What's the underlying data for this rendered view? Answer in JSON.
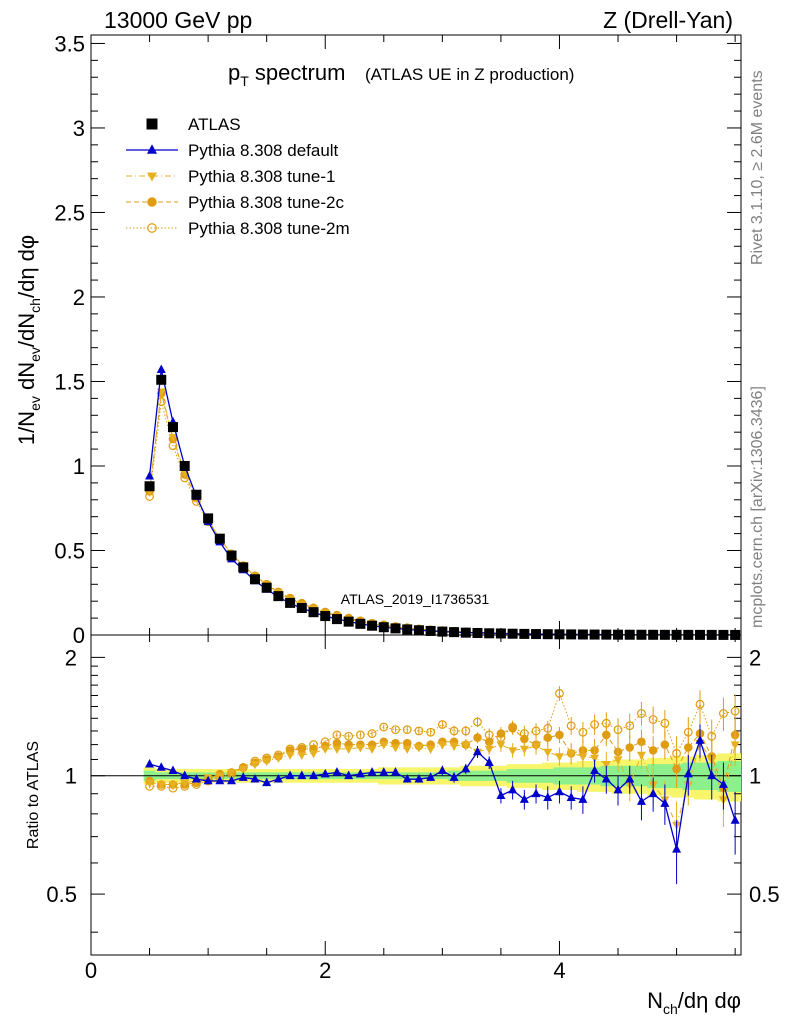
{
  "header": {
    "left": "13000 GeV pp",
    "right": "Z (Drell-Yan)"
  },
  "side_labels": {
    "rivet": "Rivet 3.1.10, ≥ 2.6M events",
    "mcplots": "mcplots.cern.ch [arXiv:1306.3436]"
  },
  "chart_data": [
    {
      "type": "scatter",
      "title_main": "p",
      "title_sub": "T",
      "title_rest": " spectrum",
      "title_small": "(ATLAS UE in Z production)",
      "watermark": "ATLAS_2019_I1736531",
      "ylabel": "1/N_ev dN_ev/dN_ch/dη dφ",
      "xlim": [
        0,
        5.55
      ],
      "ylim": [
        0,
        3.55
      ],
      "yticks": [
        "0",
        "0.5",
        "1",
        "1.5",
        "2",
        "2.5",
        "3",
        "3.5"
      ],
      "ytick_values": [
        0,
        0.5,
        1,
        1.5,
        2,
        2.5,
        3,
        3.5
      ],
      "x": [
        0.5,
        0.6,
        0.7,
        0.8,
        0.9,
        1.0,
        1.1,
        1.2,
        1.3,
        1.4,
        1.5,
        1.6,
        1.7,
        1.8,
        1.9,
        2.0,
        2.1,
        2.2,
        2.3,
        2.4,
        2.5,
        2.6,
        2.7,
        2.8,
        2.9,
        3.0,
        3.1,
        3.2,
        3.3,
        3.4,
        3.5,
        3.6,
        3.7,
        3.8,
        3.9,
        4.0,
        4.1,
        4.2,
        4.3,
        4.4,
        4.5,
        4.6,
        4.7,
        4.8,
        4.9,
        5.0,
        5.1,
        5.2,
        5.3,
        5.4,
        5.5
      ],
      "series": [
        {
          "name": "ATLAS",
          "color": "#000000",
          "marker": "square",
          "values": [
            0.88,
            1.51,
            1.23,
            1.0,
            0.83,
            0.69,
            0.57,
            0.47,
            0.4,
            0.33,
            0.28,
            0.23,
            0.19,
            0.16,
            0.135,
            0.112,
            0.094,
            0.079,
            0.066,
            0.055,
            0.046,
            0.039,
            0.033,
            0.028,
            0.024,
            0.02,
            0.017,
            0.014,
            0.012,
            0.01,
            0.009,
            0.0075,
            0.0065,
            0.0055,
            0.0048,
            0.0041,
            0.0035,
            0.003,
            0.0026,
            0.0022,
            0.0019,
            0.0016,
            0.0014,
            0.0012,
            0.001,
            0.0009,
            0.0008,
            0.0007,
            0.0006,
            0.0005,
            0.0004
          ]
        },
        {
          "name": "Pythia 8.308 default",
          "color": "#0000cc",
          "marker": "triangle-up",
          "values": [
            0.94,
            1.57,
            1.26,
            1.0,
            0.82,
            0.67,
            0.55,
            0.45,
            0.385,
            0.32,
            0.27,
            0.225,
            0.187,
            0.158,
            0.134,
            0.112,
            0.095,
            0.08,
            0.066,
            0.055,
            0.046,
            0.039,
            0.033,
            0.028,
            0.024,
            0.02,
            0.017,
            0.015,
            0.013,
            0.011,
            0.009,
            0.0075,
            0.0065,
            0.0055,
            0.0048,
            0.0041,
            0.0035,
            0.003,
            0.0026,
            0.0022,
            0.0019,
            0.0016,
            0.0014,
            0.0012,
            0.001,
            0.0009,
            0.0008,
            0.0007,
            0.0006,
            0.0005,
            0.0004
          ]
        },
        {
          "name": "Pythia 8.308 tune-1",
          "color": "#e6b020",
          "marker": "triangle-down",
          "values": [
            0.85,
            1.44,
            1.17,
            0.96,
            0.81,
            0.68,
            0.57,
            0.48,
            0.41,
            0.35,
            0.3,
            0.25,
            0.21,
            0.18,
            0.155,
            0.13,
            0.11,
            0.093,
            0.078,
            0.065,
            0.055,
            0.046,
            0.039,
            0.033,
            0.028,
            0.024,
            0.02,
            0.017,
            0.014,
            0.012,
            0.01,
            0.0087,
            0.0075,
            0.0064,
            0.0055,
            0.0047,
            0.004,
            0.0034,
            0.0029,
            0.0025,
            0.0021,
            0.0018,
            0.0016,
            0.0014,
            0.0012,
            0.001,
            0.0009,
            0.0008,
            0.0007,
            0.0006,
            0.0005
          ]
        },
        {
          "name": "Pythia 8.308 tune-2c",
          "color": "#e09c10",
          "marker": "circle",
          "values": [
            0.85,
            1.43,
            1.16,
            0.95,
            0.81,
            0.68,
            0.57,
            0.48,
            0.41,
            0.35,
            0.3,
            0.25,
            0.215,
            0.185,
            0.158,
            0.133,
            0.113,
            0.095,
            0.08,
            0.067,
            0.056,
            0.047,
            0.04,
            0.034,
            0.029,
            0.025,
            0.021,
            0.017,
            0.015,
            0.012,
            0.011,
            0.009,
            0.0077,
            0.0066,
            0.0056,
            0.0048,
            0.0041,
            0.0035,
            0.003,
            0.0025,
            0.0022,
            0.0019,
            0.0016,
            0.0014,
            0.0012,
            0.001,
            0.0009,
            0.0008,
            0.0007,
            0.0006,
            0.0005
          ]
        },
        {
          "name": "Pythia 8.308 tune-2m",
          "color": "#e09c10",
          "marker": "open-circle",
          "values": [
            0.82,
            1.38,
            1.12,
            0.93,
            0.79,
            0.67,
            0.57,
            0.48,
            0.41,
            0.35,
            0.3,
            0.255,
            0.218,
            0.188,
            0.16,
            0.136,
            0.117,
            0.1,
            0.084,
            0.07,
            0.06,
            0.05,
            0.043,
            0.036,
            0.031,
            0.026,
            0.022,
            0.018,
            0.016,
            0.013,
            0.011,
            0.0095,
            0.008,
            0.0068,
            0.0058,
            0.005,
            0.0043,
            0.0036,
            0.0031,
            0.0026,
            0.0023,
            0.002,
            0.0017,
            0.0015,
            0.0013,
            0.0011,
            0.001,
            0.0009,
            0.0008,
            0.0007,
            0.0006
          ]
        }
      ]
    },
    {
      "type": "scatter",
      "ylabel": "Ratio to ATLAS",
      "xlabel": "N_ch/dη dφ",
      "xlim": [
        0,
        5.55
      ],
      "ylim": [
        0.35,
        2.28
      ],
      "xticks": [
        "0",
        "2",
        "4"
      ],
      "xtick_values": [
        0,
        2,
        4
      ],
      "yticks": [
        "0.5",
        "1",
        "2"
      ],
      "ytick_values": [
        0.5,
        1,
        2
      ],
      "x": [
        0.5,
        0.6,
        0.7,
        0.8,
        0.9,
        1.0,
        1.1,
        1.2,
        1.3,
        1.4,
        1.5,
        1.6,
        1.7,
        1.8,
        1.9,
        2.0,
        2.1,
        2.2,
        2.3,
        2.4,
        2.5,
        2.6,
        2.7,
        2.8,
        2.9,
        3.0,
        3.1,
        3.2,
        3.3,
        3.4,
        3.5,
        3.6,
        3.7,
        3.8,
        3.9,
        4.0,
        4.1,
        4.2,
        4.3,
        4.4,
        4.5,
        4.6,
        4.7,
        4.8,
        4.9,
        5.0,
        5.1,
        5.2,
        5.3,
        5.4,
        5.5
      ],
      "band_stat": [
        0.03,
        0.02,
        0.02,
        0.02,
        0.02,
        0.02,
        0.02,
        0.02,
        0.02,
        0.02,
        0.02,
        0.02,
        0.02,
        0.02,
        0.02,
        0.02,
        0.02,
        0.02,
        0.02,
        0.02,
        0.02,
        0.02,
        0.02,
        0.02,
        0.02,
        0.02,
        0.03,
        0.03,
        0.03,
        0.03,
        0.03,
        0.04,
        0.04,
        0.04,
        0.04,
        0.05,
        0.05,
        0.05,
        0.05,
        0.06,
        0.06,
        0.06,
        0.06,
        0.07,
        0.07,
        0.07,
        0.08,
        0.08,
        0.08,
        0.09,
        0.09
      ],
      "band_total": [
        0.05,
        0.04,
        0.04,
        0.04,
        0.04,
        0.04,
        0.04,
        0.04,
        0.04,
        0.04,
        0.04,
        0.04,
        0.04,
        0.04,
        0.04,
        0.04,
        0.04,
        0.04,
        0.04,
        0.04,
        0.05,
        0.05,
        0.05,
        0.05,
        0.05,
        0.05,
        0.05,
        0.06,
        0.06,
        0.06,
        0.06,
        0.07,
        0.07,
        0.07,
        0.08,
        0.08,
        0.08,
        0.09,
        0.09,
        0.09,
        0.1,
        0.1,
        0.1,
        0.11,
        0.11,
        0.12,
        0.12,
        0.13,
        0.13,
        0.14,
        0.14
      ],
      "series": [
        {
          "name": "Pythia 8.308 default",
          "color": "#0000cc",
          "marker": "triangle-up",
          "values": [
            1.07,
            1.05,
            1.03,
            1.0,
            0.98,
            0.97,
            0.97,
            0.97,
            0.99,
            0.98,
            0.96,
            0.98,
            1.0,
            1.0,
            1.0,
            1.01,
            1.02,
            1.0,
            1.01,
            1.02,
            1.02,
            1.02,
            0.98,
            0.98,
            0.99,
            1.03,
            0.99,
            1.04,
            1.15,
            1.08,
            0.89,
            0.92,
            0.87,
            0.9,
            0.88,
            0.91,
            0.88,
            0.87,
            1.03,
            0.98,
            0.92,
            0.98,
            0.86,
            0.9,
            0.85,
            0.65,
            1.01,
            1.23,
            1.0,
            0.95,
            0.77
          ],
          "errors": [
            0.01,
            0.01,
            0.01,
            0.01,
            0.01,
            0.01,
            0.01,
            0.01,
            0.01,
            0.01,
            0.01,
            0.01,
            0.01,
            0.01,
            0.01,
            0.01,
            0.01,
            0.01,
            0.01,
            0.01,
            0.02,
            0.02,
            0.02,
            0.02,
            0.02,
            0.03,
            0.03,
            0.03,
            0.04,
            0.04,
            0.04,
            0.05,
            0.05,
            0.05,
            0.06,
            0.06,
            0.06,
            0.07,
            0.07,
            0.08,
            0.08,
            0.08,
            0.09,
            0.09,
            0.1,
            0.12,
            0.12,
            0.12,
            0.13,
            0.13,
            0.14
          ]
        },
        {
          "name": "Pythia 8.308 tune-1",
          "color": "#e6b020",
          "marker": "triangle-down",
          "values": [
            0.96,
            0.95,
            0.95,
            0.96,
            0.97,
            0.99,
            1.0,
            1.02,
            1.04,
            1.07,
            1.09,
            1.11,
            1.13,
            1.13,
            1.14,
            1.17,
            1.17,
            1.17,
            1.18,
            1.17,
            1.2,
            1.18,
            1.17,
            1.18,
            1.17,
            1.2,
            1.19,
            1.2,
            1.15,
            1.17,
            1.2,
            1.16,
            1.17,
            1.19,
            1.15,
            1.12,
            1.14,
            1.12,
            1.11,
            1.07,
            1.1,
            0.95,
            1.13,
            0.95,
            0.87,
            0.75,
            0.95,
            1.21,
            1.1,
            0.87,
            1.2
          ],
          "errors": [
            0.01,
            0.01,
            0.01,
            0.01,
            0.01,
            0.01,
            0.01,
            0.01,
            0.01,
            0.01,
            0.01,
            0.01,
            0.01,
            0.01,
            0.01,
            0.01,
            0.02,
            0.02,
            0.02,
            0.02,
            0.02,
            0.02,
            0.02,
            0.03,
            0.03,
            0.03,
            0.03,
            0.04,
            0.04,
            0.04,
            0.05,
            0.05,
            0.05,
            0.06,
            0.06,
            0.06,
            0.07,
            0.07,
            0.08,
            0.08,
            0.08,
            0.09,
            0.09,
            0.1,
            0.1,
            0.11,
            0.11,
            0.12,
            0.12,
            0.13,
            0.14
          ]
        },
        {
          "name": "Pythia 8.308 tune-2c",
          "color": "#e09c10",
          "marker": "circle",
          "values": [
            0.97,
            0.95,
            0.95,
            0.95,
            0.96,
            0.98,
            1.01,
            1.02,
            1.05,
            1.08,
            1.1,
            1.12,
            1.16,
            1.17,
            1.17,
            1.19,
            1.21,
            1.2,
            1.2,
            1.2,
            1.22,
            1.21,
            1.21,
            1.19,
            1.2,
            1.22,
            1.22,
            1.2,
            1.25,
            1.22,
            1.28,
            1.32,
            1.24,
            1.2,
            1.25,
            1.27,
            1.14,
            1.16,
            1.16,
            1.27,
            1.15,
            1.18,
            1.22,
            1.16,
            1.2,
            1.04,
            1.18,
            1.28,
            1.12,
            0.93,
            1.27
          ],
          "errors": [
            0.01,
            0.01,
            0.01,
            0.01,
            0.01,
            0.01,
            0.01,
            0.01,
            0.01,
            0.01,
            0.01,
            0.01,
            0.01,
            0.01,
            0.01,
            0.01,
            0.02,
            0.02,
            0.02,
            0.02,
            0.02,
            0.02,
            0.02,
            0.03,
            0.03,
            0.03,
            0.03,
            0.04,
            0.04,
            0.04,
            0.05,
            0.05,
            0.05,
            0.06,
            0.06,
            0.06,
            0.07,
            0.07,
            0.08,
            0.08,
            0.08,
            0.09,
            0.09,
            0.1,
            0.1,
            0.11,
            0.11,
            0.12,
            0.12,
            0.13,
            0.14
          ]
        },
        {
          "name": "Pythia 8.308 tune-2m",
          "color": "#e09c10",
          "marker": "open-circle",
          "values": [
            0.94,
            0.94,
            0.93,
            0.94,
            0.95,
            0.97,
            0.99,
            1.01,
            1.05,
            1.09,
            1.11,
            1.13,
            1.17,
            1.18,
            1.2,
            1.22,
            1.27,
            1.26,
            1.27,
            1.28,
            1.33,
            1.31,
            1.31,
            1.3,
            1.29,
            1.35,
            1.3,
            1.3,
            1.37,
            1.27,
            1.25,
            1.33,
            1.28,
            1.3,
            1.32,
            1.62,
            1.34,
            1.29,
            1.35,
            1.36,
            1.31,
            1.34,
            1.44,
            1.39,
            1.36,
            1.14,
            1.29,
            1.52,
            1.26,
            1.44,
            1.46
          ],
          "errors": [
            0.01,
            0.01,
            0.01,
            0.01,
            0.01,
            0.01,
            0.01,
            0.01,
            0.01,
            0.01,
            0.01,
            0.01,
            0.01,
            0.01,
            0.01,
            0.01,
            0.02,
            0.02,
            0.02,
            0.02,
            0.02,
            0.02,
            0.03,
            0.03,
            0.03,
            0.03,
            0.04,
            0.04,
            0.04,
            0.05,
            0.05,
            0.05,
            0.06,
            0.06,
            0.06,
            0.07,
            0.07,
            0.08,
            0.08,
            0.09,
            0.09,
            0.1,
            0.1,
            0.11,
            0.11,
            0.12,
            0.12,
            0.13,
            0.13,
            0.14,
            0.15
          ]
        }
      ]
    }
  ]
}
